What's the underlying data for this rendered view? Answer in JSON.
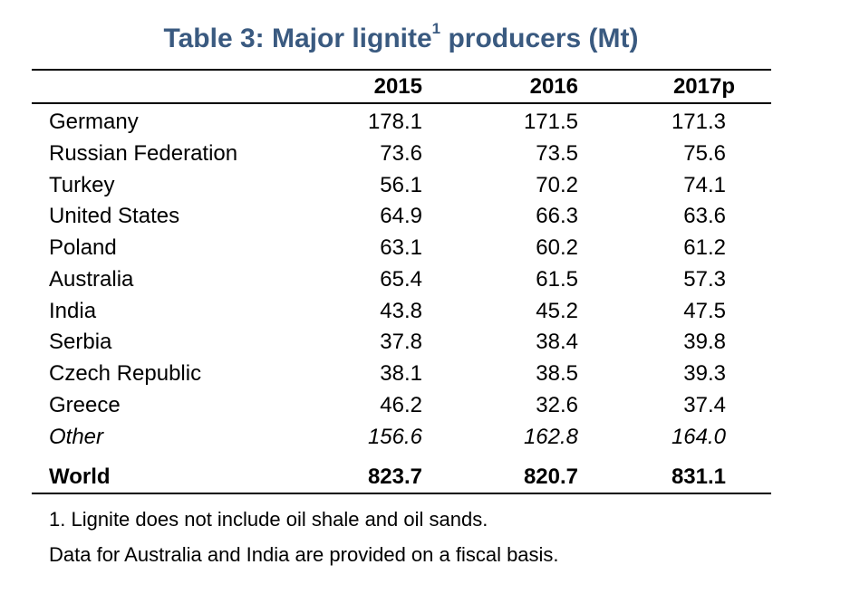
{
  "title": {
    "prefix": "Table 3: Major lignite",
    "superscript": "1",
    "suffix": " producers (Mt)",
    "color": "#3a5a80"
  },
  "columns": [
    "2015",
    "2016",
    "2017p"
  ],
  "rows": [
    {
      "country": "Germany",
      "values": [
        "178.1",
        "171.5",
        "171.3"
      ]
    },
    {
      "country": "Russian Federation",
      "values": [
        "73.6",
        "73.5",
        "75.6"
      ]
    },
    {
      "country": "Turkey",
      "values": [
        "56.1",
        "70.2",
        "74.1"
      ]
    },
    {
      "country": "United States",
      "values": [
        "64.9",
        "66.3",
        "63.6"
      ]
    },
    {
      "country": "Poland",
      "values": [
        "63.1",
        "60.2",
        "61.2"
      ]
    },
    {
      "country": "Australia",
      "values": [
        "65.4",
        "61.5",
        "57.3"
      ]
    },
    {
      "country": "India",
      "values": [
        "43.8",
        "45.2",
        "47.5"
      ]
    },
    {
      "country": "Serbia",
      "values": [
        "37.8",
        "38.4",
        "39.8"
      ]
    },
    {
      "country": "Czech Republic",
      "values": [
        "38.1",
        "38.5",
        "39.3"
      ]
    },
    {
      "country": "Greece",
      "values": [
        "46.2",
        "32.6",
        "37.4"
      ]
    },
    {
      "country": "Other",
      "values": [
        "156.6",
        "162.8",
        "164.0"
      ]
    }
  ],
  "total": {
    "country": "World",
    "values": [
      "823.7",
      "820.7",
      "831.1"
    ]
  },
  "notes": [
    "1. Lignite does not include oil shale and oil sands.",
    "Data for Australia and India are provided on a fiscal basis."
  ]
}
